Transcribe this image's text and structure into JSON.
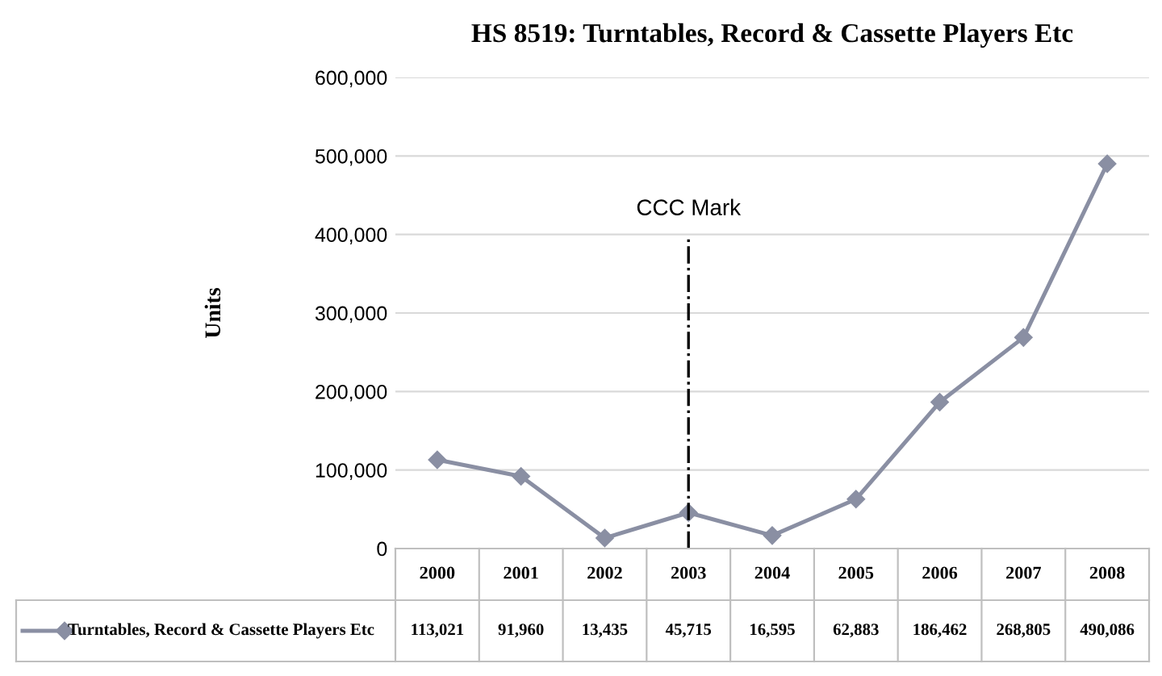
{
  "chart_data": {
    "type": "line",
    "title": "HS 8519: Turntables, Record & Cassette Players Etc",
    "ylabel": "Units",
    "categories": [
      "2000",
      "2001",
      "2002",
      "2003",
      "2004",
      "2005",
      "2006",
      "2007",
      "2008"
    ],
    "series": [
      {
        "name": "Turntables, Record & Cassette Players Etc",
        "color": "#8a8fa3",
        "values": [
          113021,
          91960,
          13435,
          45715,
          16595,
          62883,
          186462,
          268805,
          490086
        ],
        "value_labels": [
          "113,021",
          "91,960",
          "13,435",
          "45,715",
          "16,595",
          "62,883",
          "186,462",
          "268,805",
          "490,086"
        ]
      }
    ],
    "ylim": [
      0,
      600000
    ],
    "yticks": [
      {
        "value": 0,
        "label": "0"
      },
      {
        "value": 100000,
        "label": "100,000"
      },
      {
        "value": 200000,
        "label": "200,000"
      },
      {
        "value": 300000,
        "label": "300,000"
      },
      {
        "value": 400000,
        "label": "400,000"
      },
      {
        "value": 500000,
        "label": "500,000"
      },
      {
        "value": 600000,
        "label": "600,000"
      }
    ],
    "ref_lines": [
      {
        "axis": "x",
        "value": "2003",
        "label": "CCC Mark",
        "color": "#000000",
        "line_style": "dashdot"
      }
    ],
    "grid": "y",
    "marker": "diamond",
    "line_style": "solid",
    "legend": "bottom left"
  }
}
